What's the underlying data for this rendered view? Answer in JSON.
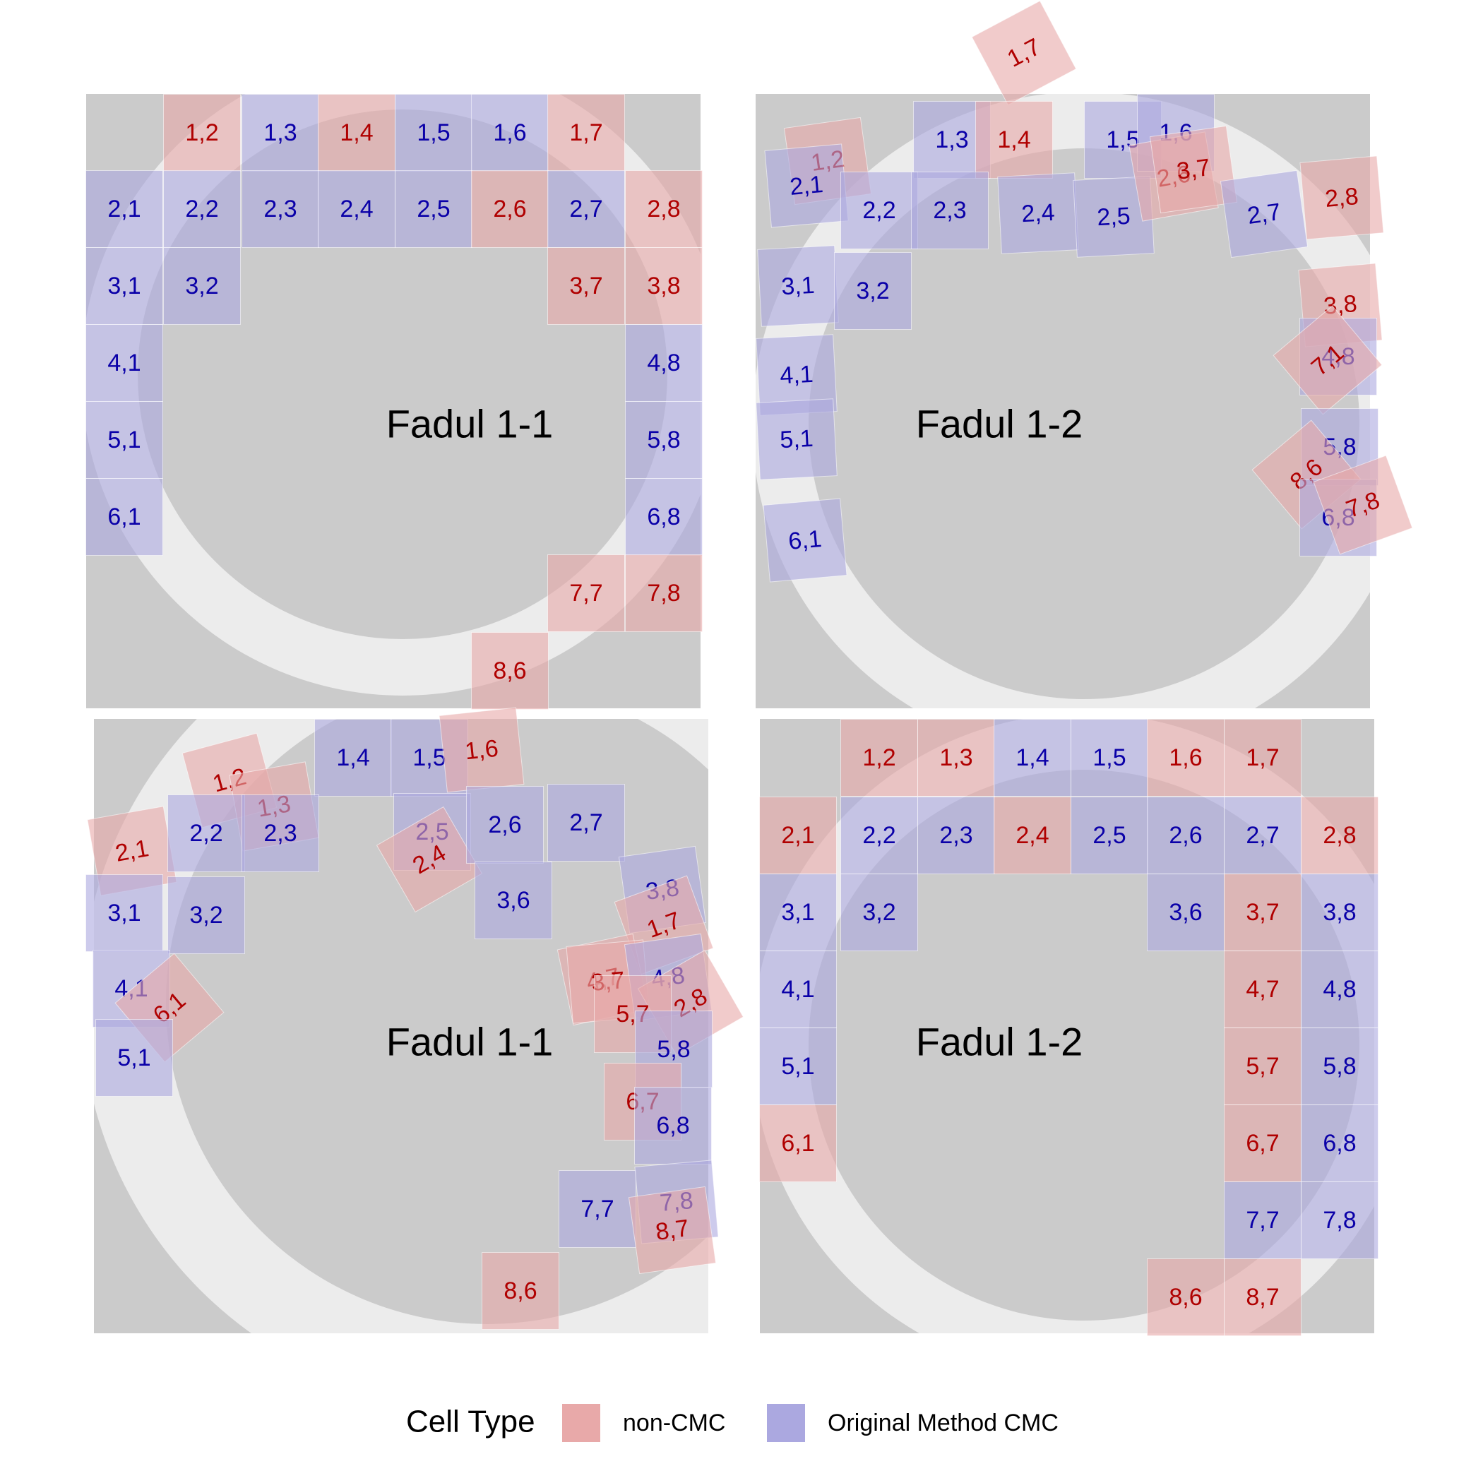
{
  "colors": {
    "non_cmc_fill": "#e8a9a9",
    "cmc_fill": "#aba8e0",
    "non_cmc_text": "#b00000",
    "cmc_text": "#0a00a8",
    "background": "#cbcbcb",
    "ring": "#ececec"
  },
  "legend": {
    "title": "Cell Type",
    "items": [
      {
        "label": "non-CMC",
        "type": "non"
      },
      {
        "label": "Original Method CMC",
        "type": "cmc"
      }
    ]
  },
  "panels": [
    {
      "title": "Fadul 1-1",
      "cells": [
        {
          "label": "1,2",
          "type": "non"
        },
        {
          "label": "1,3",
          "type": "cmc"
        },
        {
          "label": "1,4",
          "type": "non"
        },
        {
          "label": "1,5",
          "type": "cmc"
        },
        {
          "label": "1,6",
          "type": "cmc"
        },
        {
          "label": "1,7",
          "type": "non"
        },
        {
          "label": "2,1",
          "type": "cmc"
        },
        {
          "label": "2,2",
          "type": "cmc"
        },
        {
          "label": "2,3",
          "type": "cmc"
        },
        {
          "label": "2,4",
          "type": "cmc"
        },
        {
          "label": "2,5",
          "type": "cmc"
        },
        {
          "label": "2,6",
          "type": "non"
        },
        {
          "label": "2,7",
          "type": "cmc"
        },
        {
          "label": "2,8",
          "type": "non"
        },
        {
          "label": "3,1",
          "type": "cmc"
        },
        {
          "label": "3,2",
          "type": "cmc"
        },
        {
          "label": "3,7",
          "type": "non"
        },
        {
          "label": "3,8",
          "type": "non"
        },
        {
          "label": "4,1",
          "type": "cmc"
        },
        {
          "label": "4,8",
          "type": "cmc"
        },
        {
          "label": "5,1",
          "type": "cmc"
        },
        {
          "label": "5,8",
          "type": "cmc"
        },
        {
          "label": "6,1",
          "type": "cmc"
        },
        {
          "label": "6,8",
          "type": "cmc"
        },
        {
          "label": "7,7",
          "type": "non"
        },
        {
          "label": "7,8",
          "type": "non"
        },
        {
          "label": "8,6",
          "type": "non"
        }
      ]
    },
    {
      "title": "Fadul 1-2",
      "cells": [
        {
          "label": "1,7",
          "type": "non"
        },
        {
          "label": "1,2",
          "type": "non"
        },
        {
          "label": "1,3",
          "type": "cmc"
        },
        {
          "label": "1,4",
          "type": "non"
        },
        {
          "label": "1,5",
          "type": "cmc"
        },
        {
          "label": "1,6",
          "type": "cmc"
        },
        {
          "label": "2,1",
          "type": "cmc"
        },
        {
          "label": "2,2",
          "type": "cmc"
        },
        {
          "label": "2,3",
          "type": "cmc"
        },
        {
          "label": "2,4",
          "type": "cmc"
        },
        {
          "label": "2,5",
          "type": "cmc"
        },
        {
          "label": "2,6",
          "type": "non"
        },
        {
          "label": "3,7",
          "type": "non"
        },
        {
          "label": "2,7",
          "type": "cmc"
        },
        {
          "label": "2,8",
          "type": "non"
        },
        {
          "label": "3,1",
          "type": "cmc"
        },
        {
          "label": "3,2",
          "type": "cmc"
        },
        {
          "label": "3,8",
          "type": "non"
        },
        {
          "label": "4,1",
          "type": "cmc"
        },
        {
          "label": "4,8",
          "type": "cmc"
        },
        {
          "label": "7,1",
          "type": "non"
        },
        {
          "label": "5,1",
          "type": "cmc"
        },
        {
          "label": "5,8",
          "type": "cmc"
        },
        {
          "label": "8,6",
          "type": "non"
        },
        {
          "label": "6,8",
          "type": "cmc"
        },
        {
          "label": "7,8",
          "type": "non"
        },
        {
          "label": "6,1",
          "type": "cmc"
        }
      ]
    },
    {
      "title": "Fadul 1-1",
      "cells": [
        {
          "label": "1,4",
          "type": "cmc"
        },
        {
          "label": "1,5",
          "type": "cmc"
        },
        {
          "label": "1,6",
          "type": "non"
        },
        {
          "label": "1,2",
          "type": "non"
        },
        {
          "label": "1,3",
          "type": "non"
        },
        {
          "label": "2,1",
          "type": "non"
        },
        {
          "label": "2,2",
          "type": "cmc"
        },
        {
          "label": "2,3",
          "type": "cmc"
        },
        {
          "label": "2,5",
          "type": "cmc"
        },
        {
          "label": "2,4",
          "type": "non"
        },
        {
          "label": "2,6",
          "type": "cmc"
        },
        {
          "label": "2,7",
          "type": "cmc"
        },
        {
          "label": "3,1",
          "type": "cmc"
        },
        {
          "label": "3,2",
          "type": "cmc"
        },
        {
          "label": "3,6",
          "type": "cmc"
        },
        {
          "label": "3,8",
          "type": "cmc"
        },
        {
          "label": "1,7",
          "type": "non"
        },
        {
          "label": "4,1",
          "type": "cmc"
        },
        {
          "label": "6,1",
          "type": "non"
        },
        {
          "label": "4,7",
          "type": "non"
        },
        {
          "label": "3,7",
          "type": "non"
        },
        {
          "label": "4,8",
          "type": "cmc"
        },
        {
          "label": "2,8",
          "type": "non"
        },
        {
          "label": "5,7",
          "type": "non"
        },
        {
          "label": "5,1",
          "type": "cmc"
        },
        {
          "label": "5,8",
          "type": "cmc"
        },
        {
          "label": "6,7",
          "type": "non"
        },
        {
          "label": "6,8",
          "type": "cmc"
        },
        {
          "label": "7,7",
          "type": "cmc"
        },
        {
          "label": "7,8",
          "type": "cmc"
        },
        {
          "label": "8,7",
          "type": "non"
        },
        {
          "label": "8,6",
          "type": "non"
        }
      ]
    },
    {
      "title": "Fadul 1-2",
      "cells": [
        {
          "label": "1,2",
          "type": "non"
        },
        {
          "label": "1,3",
          "type": "non"
        },
        {
          "label": "1,4",
          "type": "cmc"
        },
        {
          "label": "1,5",
          "type": "cmc"
        },
        {
          "label": "1,6",
          "type": "non"
        },
        {
          "label": "1,7",
          "type": "non"
        },
        {
          "label": "2,1",
          "type": "non"
        },
        {
          "label": "2,2",
          "type": "cmc"
        },
        {
          "label": "2,3",
          "type": "cmc"
        },
        {
          "label": "2,4",
          "type": "non"
        },
        {
          "label": "2,5",
          "type": "cmc"
        },
        {
          "label": "2,6",
          "type": "cmc"
        },
        {
          "label": "2,7",
          "type": "cmc"
        },
        {
          "label": "2,8",
          "type": "non"
        },
        {
          "label": "3,1",
          "type": "cmc"
        },
        {
          "label": "3,2",
          "type": "cmc"
        },
        {
          "label": "3,6",
          "type": "cmc"
        },
        {
          "label": "3,7",
          "type": "non"
        },
        {
          "label": "3,8",
          "type": "cmc"
        },
        {
          "label": "4,1",
          "type": "cmc"
        },
        {
          "label": "4,7",
          "type": "non"
        },
        {
          "label": "4,8",
          "type": "cmc"
        },
        {
          "label": "5,1",
          "type": "cmc"
        },
        {
          "label": "5,7",
          "type": "non"
        },
        {
          "label": "5,8",
          "type": "cmc"
        },
        {
          "label": "6,1",
          "type": "non"
        },
        {
          "label": "6,7",
          "type": "non"
        },
        {
          "label": "6,8",
          "type": "cmc"
        },
        {
          "label": "7,7",
          "type": "cmc"
        },
        {
          "label": "7,8",
          "type": "cmc"
        },
        {
          "label": "8,6",
          "type": "non"
        },
        {
          "label": "8,7",
          "type": "non"
        }
      ]
    }
  ]
}
